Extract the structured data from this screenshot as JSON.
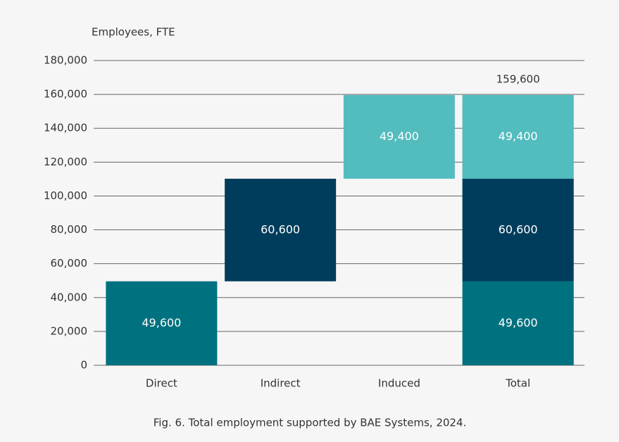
{
  "chart_data": {
    "type": "waterfall",
    "y_axis_label": "Employees, FTE",
    "caption": "Fig. 6. Total employment supported by BAE Systems, 2024.",
    "categories": [
      "Direct",
      "Indirect",
      "Induced",
      "Total"
    ],
    "values": [
      49600,
      60600,
      49400,
      159600
    ],
    "value_labels": [
      "49,600",
      "60,600",
      "49,400",
      "159,600"
    ],
    "colors": [
      "#00717f",
      "#003d5c",
      "#52bcbf",
      "#52bcbf"
    ],
    "ylim": [
      0,
      180000
    ],
    "yticks": [
      {
        "value": 0,
        "label": "0"
      },
      {
        "value": 20000,
        "label": "20,000"
      },
      {
        "value": 40000,
        "label": "40,000"
      },
      {
        "value": 60000,
        "label": "60,000"
      },
      {
        "value": 80000,
        "label": "80,000"
      },
      {
        "value": 100000,
        "label": "100,000"
      },
      {
        "value": 120000,
        "label": "120,000"
      },
      {
        "value": 140000,
        "label": "140,000"
      },
      {
        "value": 160000,
        "label": "160,000"
      },
      {
        "value": 180000,
        "label": "180,000"
      }
    ],
    "grid": true
  }
}
